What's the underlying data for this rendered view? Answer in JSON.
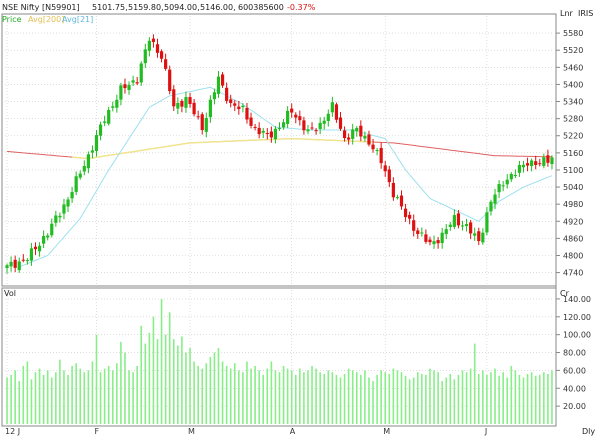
{
  "header": {
    "symbol": "NSE Nifty [N59901]",
    "open": "5101.75,",
    "high": "5159.80,",
    "low": "5094.00,",
    "close": "5146.00,",
    "volume": "600385600",
    "change": "-0.37%",
    "legend_price": "Price",
    "legend_avg1": "Avg[200]",
    "legend_avg2": "Avg[21]",
    "scale_mode": "Lnr",
    "vendor": "IRIS",
    "volume_label": "Vol",
    "volume_unit": "Cr",
    "period": "Dly"
  },
  "colors": {
    "up": "#22bb22",
    "down": "#dd1111",
    "avg_long": "#e06060",
    "avg_yellow": "#f0e68c",
    "avg_short": "#9ee0ee",
    "volume": "#88ee88"
  },
  "chart_data": [
    {
      "type": "candlestick",
      "y_ticks": [
        4740,
        4800,
        4860,
        4920,
        4980,
        5040,
        5100,
        5160,
        5220,
        5280,
        5340,
        5400,
        5460,
        5520,
        5580
      ],
      "ylim": [
        4700,
        5640
      ],
      "x_labels": [
        {
          "index": 0,
          "label": "12 J"
        },
        {
          "index": 22,
          "label": "F"
        },
        {
          "index": 45,
          "label": "M"
        },
        {
          "index": 70,
          "label": "A"
        },
        {
          "index": 93,
          "label": "M"
        },
        {
          "index": 118,
          "label": "J"
        }
      ],
      "n": 135,
      "anchors": [
        [
          0,
          4760
        ],
        [
          5,
          4790
        ],
        [
          10,
          4880
        ],
        [
          15,
          5000
        ],
        [
          20,
          5150
        ],
        [
          24,
          5280
        ],
        [
          28,
          5380
        ],
        [
          32,
          5420
        ],
        [
          35,
          5560
        ],
        [
          38,
          5500
        ],
        [
          41,
          5320
        ],
        [
          44,
          5350
        ],
        [
          48,
          5250
        ],
        [
          52,
          5420
        ],
        [
          55,
          5330
        ],
        [
          58,
          5310
        ],
        [
          61,
          5240
        ],
        [
          64,
          5220
        ],
        [
          67,
          5250
        ],
        [
          70,
          5310
        ],
        [
          74,
          5230
        ],
        [
          77,
          5260
        ],
        [
          80,
          5320
        ],
        [
          83,
          5210
        ],
        [
          86,
          5240
        ],
        [
          89,
          5200
        ],
        [
          92,
          5130
        ],
        [
          95,
          5020
        ],
        [
          98,
          4940
        ],
        [
          101,
          4880
        ],
        [
          104,
          4840
        ],
        [
          107,
          4870
        ],
        [
          110,
          4930
        ],
        [
          113,
          4900
        ],
        [
          116,
          4850
        ],
        [
          119,
          4990
        ],
        [
          122,
          5060
        ],
        [
          125,
          5090
        ],
        [
          128,
          5130
        ],
        [
          131,
          5120
        ],
        [
          134,
          5146
        ]
      ],
      "avg_long_anchors": [
        [
          0,
          5165
        ],
        [
          20,
          5140
        ],
        [
          45,
          5195
        ],
        [
          70,
          5210
        ],
        [
          95,
          5195
        ],
        [
          120,
          5150
        ],
        [
          134,
          5146
        ]
      ],
      "avg_yellow_range": [
        16,
        90
      ],
      "avg_short_anchors": [
        [
          3,
          4760
        ],
        [
          10,
          4800
        ],
        [
          18,
          4930
        ],
        [
          25,
          5100
        ],
        [
          35,
          5320
        ],
        [
          40,
          5360
        ],
        [
          50,
          5390
        ],
        [
          58,
          5330
        ],
        [
          66,
          5250
        ],
        [
          75,
          5240
        ],
        [
          85,
          5240
        ],
        [
          93,
          5210
        ],
        [
          98,
          5100
        ],
        [
          104,
          5000
        ],
        [
          110,
          4960
        ],
        [
          116,
          4920
        ],
        [
          121,
          4990
        ],
        [
          127,
          5040
        ],
        [
          134,
          5080
        ]
      ]
    },
    {
      "type": "bar",
      "series_label": "Vol",
      "y_ticks": [
        20,
        40,
        60,
        80,
        100,
        120,
        140
      ],
      "ylim": [
        0,
        150
      ],
      "values": [
        52,
        55,
        60,
        48,
        65,
        70,
        50,
        58,
        62,
        55,
        60,
        52,
        58,
        72,
        60,
        55,
        65,
        68,
        62,
        58,
        60,
        70,
        100,
        58,
        62,
        65,
        60,
        68,
        92,
        80,
        60,
        58,
        65,
        110,
        90,
        102,
        120,
        95,
        140,
        100,
        125,
        95,
        88,
        98,
        80,
        85,
        70,
        65,
        62,
        68,
        75,
        80,
        85,
        70,
        65,
        62,
        68,
        60,
        58,
        70,
        62,
        65,
        60,
        55,
        62,
        70,
        60,
        58,
        65,
        62,
        60,
        55,
        62,
        58,
        60,
        65,
        62,
        58,
        56,
        60,
        58,
        55,
        52,
        56,
        62,
        60,
        58,
        55,
        60,
        52,
        48,
        55,
        60,
        58,
        56,
        62,
        60,
        58,
        54,
        50,
        52,
        58,
        56,
        55,
        62,
        60,
        58,
        48,
        52,
        56,
        50,
        55,
        60,
        58,
        62,
        90,
        56,
        60,
        55,
        58,
        62,
        54,
        58,
        52,
        65,
        60,
        55,
        52,
        56,
        58,
        54,
        55,
        58,
        56,
        60
      ]
    }
  ]
}
